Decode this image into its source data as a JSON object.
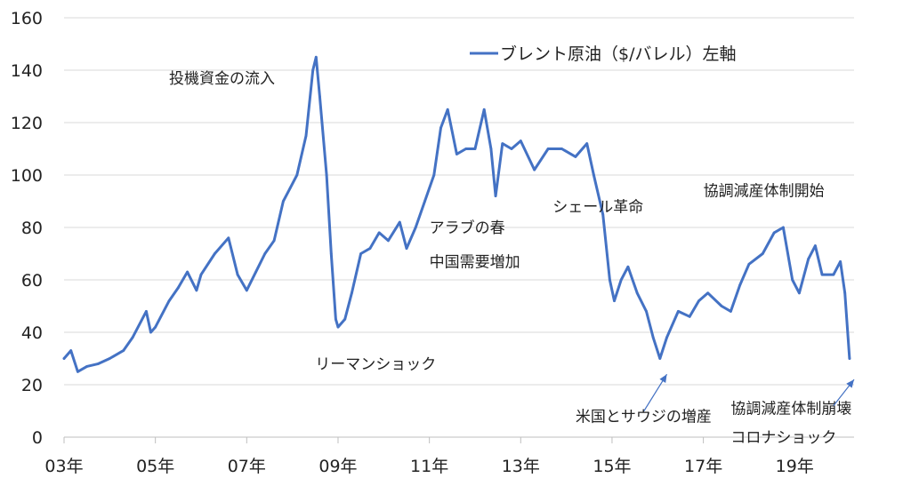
{
  "chart_data": {
    "type": "line",
    "title": "",
    "xlabel": "",
    "ylabel": "",
    "ylim": [
      0,
      160
    ],
    "yticks": [
      0,
      20,
      40,
      60,
      80,
      100,
      120,
      140,
      160
    ],
    "xlim": [
      2003,
      2020.3
    ],
    "xticks": [
      {
        "x": 2003,
        "label": "03年"
      },
      {
        "x": 2005,
        "label": "05年"
      },
      {
        "x": 2007,
        "label": "07年"
      },
      {
        "x": 2009,
        "label": "09年"
      },
      {
        "x": 2011,
        "label": "11年"
      },
      {
        "x": 2013,
        "label": "13年"
      },
      {
        "x": 2015,
        "label": "15年"
      },
      {
        "x": 2017,
        "label": "17年"
      },
      {
        "x": 2019,
        "label": "19年"
      }
    ],
    "grid": "horizontal",
    "legend": "top-right",
    "series": [
      {
        "name": "ブレント原油（$/バレル）左軸",
        "color": "#4472C4",
        "points": [
          [
            2003.0,
            30
          ],
          [
            2003.15,
            33
          ],
          [
            2003.3,
            25
          ],
          [
            2003.5,
            27
          ],
          [
            2003.75,
            28
          ],
          [
            2004.0,
            30
          ],
          [
            2004.3,
            33
          ],
          [
            2004.5,
            38
          ],
          [
            2004.8,
            48
          ],
          [
            2004.9,
            40
          ],
          [
            2005.0,
            42
          ],
          [
            2005.3,
            52
          ],
          [
            2005.5,
            57
          ],
          [
            2005.7,
            63
          ],
          [
            2005.9,
            56
          ],
          [
            2006.0,
            62
          ],
          [
            2006.3,
            70
          ],
          [
            2006.6,
            76
          ],
          [
            2006.8,
            62
          ],
          [
            2007.0,
            56
          ],
          [
            2007.2,
            63
          ],
          [
            2007.4,
            70
          ],
          [
            2007.6,
            75
          ],
          [
            2007.8,
            90
          ],
          [
            2007.95,
            95
          ],
          [
            2008.1,
            100
          ],
          [
            2008.3,
            115
          ],
          [
            2008.45,
            140
          ],
          [
            2008.52,
            145
          ],
          [
            2008.6,
            130
          ],
          [
            2008.75,
            100
          ],
          [
            2008.85,
            70
          ],
          [
            2008.95,
            45
          ],
          [
            2009.0,
            42
          ],
          [
            2009.15,
            45
          ],
          [
            2009.3,
            55
          ],
          [
            2009.5,
            70
          ],
          [
            2009.7,
            72
          ],
          [
            2009.9,
            78
          ],
          [
            2010.1,
            75
          ],
          [
            2010.35,
            82
          ],
          [
            2010.5,
            72
          ],
          [
            2010.7,
            80
          ],
          [
            2010.9,
            90
          ],
          [
            2011.1,
            100
          ],
          [
            2011.25,
            118
          ],
          [
            2011.4,
            125
          ],
          [
            2011.6,
            108
          ],
          [
            2011.8,
            110
          ],
          [
            2012.0,
            110
          ],
          [
            2012.2,
            125
          ],
          [
            2012.35,
            110
          ],
          [
            2012.45,
            92
          ],
          [
            2012.6,
            112
          ],
          [
            2012.8,
            110
          ],
          [
            2013.0,
            113
          ],
          [
            2013.3,
            102
          ],
          [
            2013.6,
            110
          ],
          [
            2013.9,
            110
          ],
          [
            2014.2,
            107
          ],
          [
            2014.45,
            112
          ],
          [
            2014.6,
            100
          ],
          [
            2014.8,
            85
          ],
          [
            2014.95,
            60
          ],
          [
            2015.05,
            52
          ],
          [
            2015.2,
            60
          ],
          [
            2015.35,
            65
          ],
          [
            2015.55,
            55
          ],
          [
            2015.75,
            48
          ],
          [
            2015.9,
            38
          ],
          [
            2016.05,
            30
          ],
          [
            2016.2,
            38
          ],
          [
            2016.45,
            48
          ],
          [
            2016.7,
            46
          ],
          [
            2016.9,
            52
          ],
          [
            2017.1,
            55
          ],
          [
            2017.4,
            50
          ],
          [
            2017.6,
            48
          ],
          [
            2017.8,
            58
          ],
          [
            2018.0,
            66
          ],
          [
            2018.3,
            70
          ],
          [
            2018.55,
            78
          ],
          [
            2018.75,
            80
          ],
          [
            2018.95,
            60
          ],
          [
            2019.1,
            55
          ],
          [
            2019.3,
            68
          ],
          [
            2019.45,
            73
          ],
          [
            2019.6,
            62
          ],
          [
            2019.85,
            62
          ],
          [
            2020.0,
            67
          ],
          [
            2020.1,
            55
          ],
          [
            2020.2,
            30
          ]
        ]
      }
    ],
    "annotations": [
      {
        "text": "投機資金の流入",
        "x": 2005.3,
        "y": 135
      },
      {
        "text": "リーマンショック",
        "x": 2008.5,
        "y": 26
      },
      {
        "text": "アラブの春",
        "x": 2011.0,
        "y": 78
      },
      {
        "text": "中国需要増加",
        "x": 2011.0,
        "y": 65
      },
      {
        "text": "シェール革命",
        "x": 2013.7,
        "y": 86
      },
      {
        "text": "協調減産体制開始",
        "x": 2017.0,
        "y": 92
      },
      {
        "text": "米国とサウジの増産",
        "x": 2014.2,
        "y": 6
      },
      {
        "text": "協調減産体制崩壊",
        "x": 2017.6,
        "y": 9
      },
      {
        "text": "コロナショック",
        "x": 2017.6,
        "y": -2
      }
    ],
    "arrows": [
      {
        "from": [
          2015.7,
          10
        ],
        "to": [
          2016.2,
          24
        ]
      },
      {
        "from": [
          2019.85,
          12
        ],
        "to": [
          2020.3,
          22
        ]
      }
    ]
  }
}
